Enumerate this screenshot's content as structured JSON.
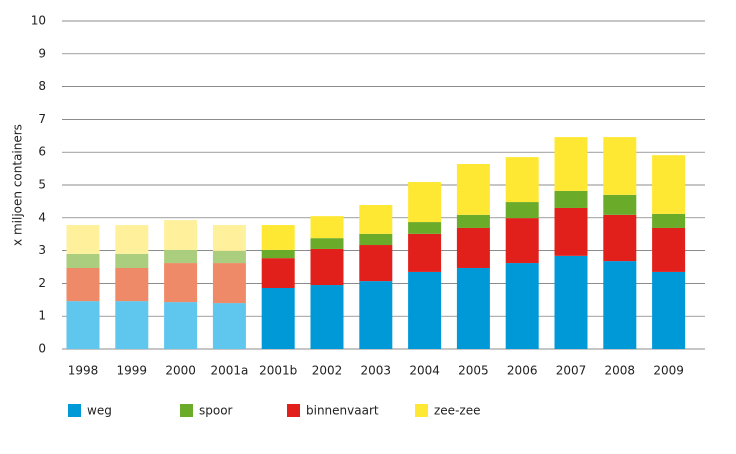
{
  "chart_data": {
    "type": "stacked-bar",
    "y_label": "x miljoen containers",
    "categories": [
      "1998",
      "1999",
      "2000",
      "2001a",
      "2001b",
      "2002",
      "2003",
      "2004",
      "2005",
      "2006",
      "2007",
      "2008",
      "2009"
    ],
    "series": [
      {
        "name": "weg",
        "color": "#0099d8",
        "colors": [
          "#5fc6ee",
          "#5fc6ee",
          "#5fc6ee",
          "#5fc6ee",
          "#0099d8",
          "#0099d8",
          "#0099d8",
          "#0099d8",
          "#0099d8",
          "#0099d8",
          "#0099d8",
          "#0099d8",
          "#0099d8"
        ],
        "values": [
          1.46,
          1.46,
          1.43,
          1.4,
          1.86,
          1.95,
          2.07,
          2.35,
          2.47,
          2.62,
          2.84,
          2.68,
          2.35
        ]
      },
      {
        "name": "binnenvaart",
        "color": "#e2201b",
        "colors": [
          "#ef8a68",
          "#ef8a68",
          "#ef8a68",
          "#ef8a68",
          "#e2201b",
          "#e2201b",
          "#e2201b",
          "#e2201b",
          "#e2201b",
          "#e2201b",
          "#e2201b",
          "#e2201b",
          "#e2201b"
        ],
        "values": [
          1.01,
          1.01,
          1.19,
          1.22,
          0.91,
          1.1,
          1.1,
          1.16,
          1.22,
          1.37,
          1.46,
          1.41,
          1.34
        ]
      },
      {
        "name": "spoor",
        "color": "#6aab2a",
        "colors": [
          "#aacd7e",
          "#aacd7e",
          "#aacd7e",
          "#aacd7e",
          "#6aab2a",
          "#6aab2a",
          "#6aab2a",
          "#6aab2a",
          "#6aab2a",
          "#6aab2a",
          "#6aab2a",
          "#6aab2a",
          "#6aab2a"
        ],
        "values": [
          0.43,
          0.43,
          0.4,
          0.37,
          0.25,
          0.33,
          0.34,
          0.36,
          0.4,
          0.49,
          0.52,
          0.61,
          0.43
        ]
      },
      {
        "name": "zee-zee",
        "color": "#ffe833",
        "colors": [
          "#fff09c",
          "#fff09c",
          "#fff09c",
          "#fff09c",
          "#ffe833",
          "#ffe833",
          "#ffe833",
          "#ffe833",
          "#ffe833",
          "#ffe833",
          "#ffe833",
          "#ffe833",
          "#ffe833"
        ],
        "values": [
          0.88,
          0.88,
          0.91,
          0.79,
          0.76,
          0.67,
          0.88,
          1.22,
          1.55,
          1.37,
          1.64,
          1.76,
          1.79
        ]
      }
    ],
    "legend_order": [
      0,
      2,
      1,
      3
    ],
    "ylim": [
      0,
      10
    ],
    "yticks": [
      0,
      1,
      2,
      3,
      4,
      5,
      6,
      7,
      8,
      9,
      10
    ],
    "grid": true
  }
}
